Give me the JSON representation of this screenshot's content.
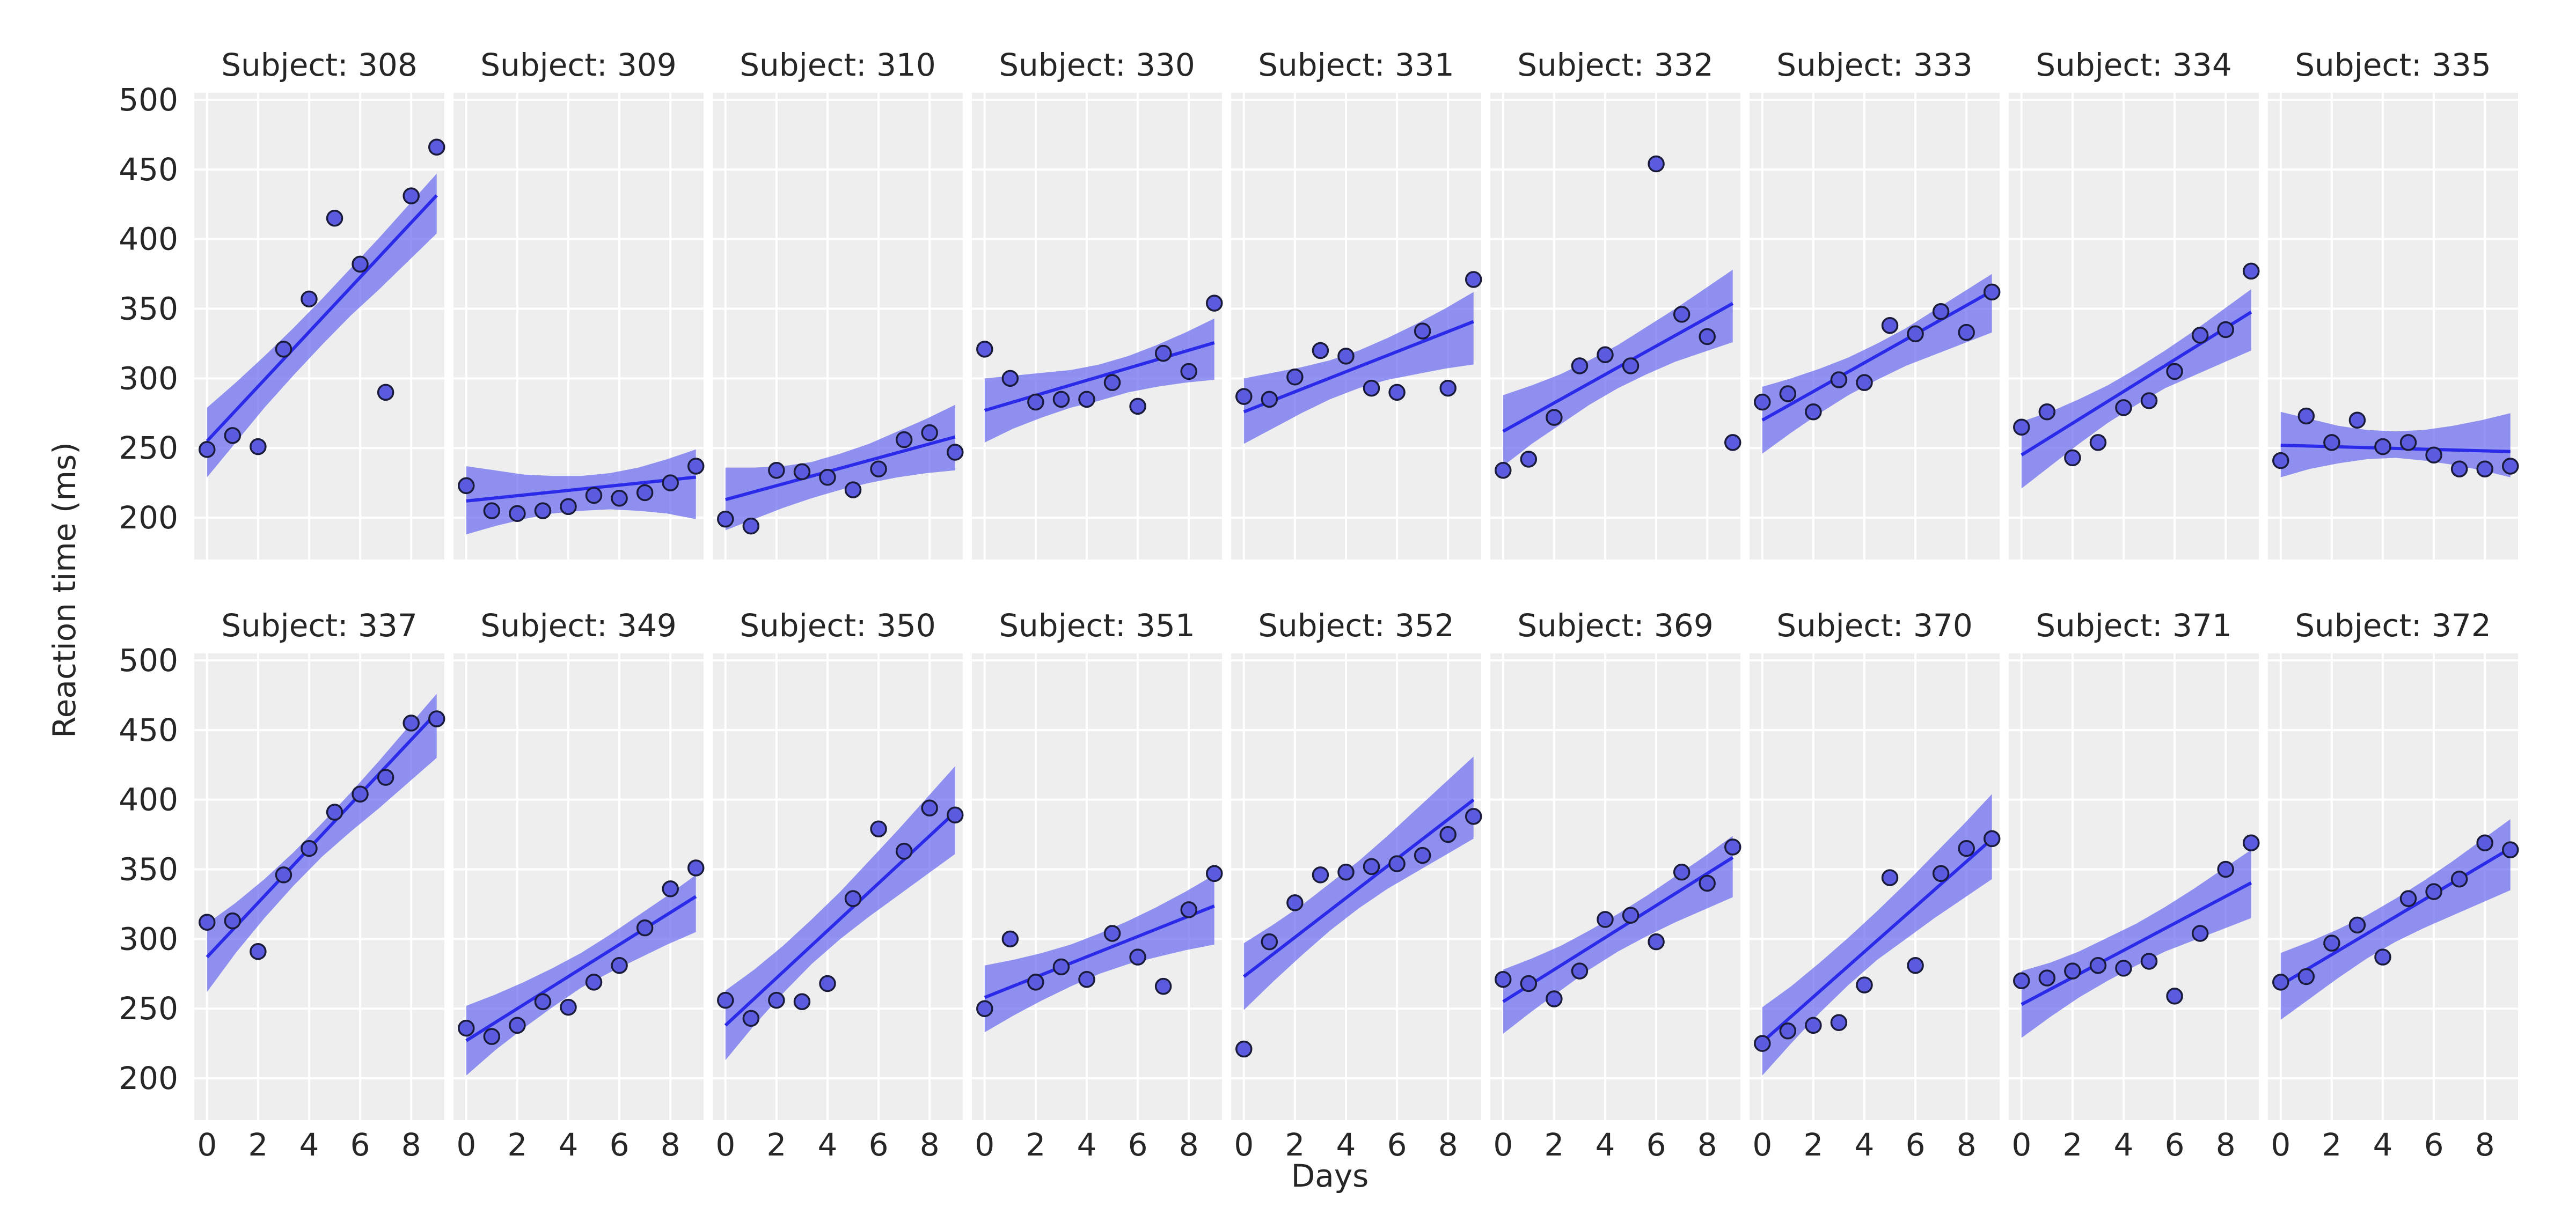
{
  "figure": {
    "xlabel": "Days",
    "ylabel": "Reaction time (ms)"
  },
  "style": {
    "panel_bg": "#EEEEEE",
    "grid": "#FFFFFF",
    "line": "#2A2AE8",
    "band": "#6B6BF0",
    "point_fill": "#5B5BE0",
    "point_edge": "#1A1A3A"
  },
  "chart_data": [
    {
      "type": "scatter",
      "title": "Subject: 308",
      "x": [
        0,
        1,
        2,
        3,
        4,
        5,
        6,
        7,
        8,
        9
      ],
      "y": [
        249,
        259,
        251,
        321,
        357,
        415,
        382,
        290,
        431,
        466
      ],
      "fit": {
        "intercept": 255,
        "slope": 19.6
      },
      "band": {
        "lower": [
          229,
          254,
          279,
          302,
          324,
          345,
          364,
          384,
          404
        ],
        "upper": [
          279,
          297,
          316,
          336,
          357,
          379,
          401,
          424,
          447
        ]
      },
      "xlim": [
        -0.5,
        9.3
      ],
      "ylim": [
        170,
        505
      ],
      "yticks": [
        200,
        250,
        300,
        350,
        400,
        450,
        500
      ],
      "xticks": [
        0,
        2,
        4,
        6,
        8
      ]
    },
    {
      "type": "scatter",
      "title": "Subject: 309",
      "x": [
        0,
        1,
        2,
        3,
        4,
        5,
        6,
        7,
        8,
        9
      ],
      "y": [
        223,
        205,
        203,
        205,
        208,
        216,
        214,
        218,
        225,
        237
      ],
      "fit": {
        "intercept": 212,
        "slope": 1.9
      },
      "band": {
        "lower": [
          188,
          194,
          199,
          203,
          205,
          206,
          205,
          203,
          199
        ],
        "upper": [
          237,
          234,
          231,
          230,
          230,
          232,
          236,
          242,
          249
        ]
      },
      "xlim": [
        -0.5,
        9.3
      ],
      "ylim": [
        170,
        505
      ],
      "yticks": [
        200,
        250,
        300,
        350,
        400,
        450,
        500
      ],
      "xticks": [
        0,
        2,
        4,
        6,
        8
      ]
    },
    {
      "type": "scatter",
      "title": "Subject: 310",
      "x": [
        0,
        1,
        2,
        3,
        4,
        5,
        6,
        7,
        8,
        9
      ],
      "y": [
        199,
        194,
        234,
        233,
        229,
        220,
        235,
        256,
        261,
        247
      ],
      "fit": {
        "intercept": 213,
        "slope": 5.0
      },
      "band": {
        "lower": [
          191,
          199,
          207,
          214,
          220,
          225,
          229,
          232,
          234
        ],
        "upper": [
          236,
          236,
          237,
          240,
          246,
          253,
          262,
          271,
          281
        ]
      },
      "xlim": [
        -0.5,
        9.3
      ],
      "ylim": [
        170,
        505
      ],
      "yticks": [
        200,
        250,
        300,
        350,
        400,
        450,
        500
      ],
      "xticks": [
        0,
        2,
        4,
        6,
        8
      ]
    },
    {
      "type": "scatter",
      "title": "Subject: 330",
      "x": [
        0,
        1,
        2,
        3,
        4,
        5,
        6,
        7,
        8,
        9
      ],
      "y": [
        321,
        300,
        283,
        285,
        285,
        297,
        280,
        318,
        305,
        354
      ],
      "fit": {
        "intercept": 277,
        "slope": 5.4
      },
      "band": {
        "lower": [
          254,
          264,
          272,
          279,
          284,
          290,
          294,
          297,
          299
        ],
        "upper": [
          300,
          302,
          304,
          306,
          310,
          316,
          324,
          333,
          343
        ]
      },
      "xlim": [
        -0.5,
        9.3
      ],
      "ylim": [
        170,
        505
      ],
      "yticks": [
        200,
        250,
        300,
        350,
        400,
        450,
        500
      ],
      "xticks": [
        0,
        2,
        4,
        6,
        8
      ]
    },
    {
      "type": "scatter",
      "title": "Subject: 331",
      "x": [
        0,
        1,
        2,
        3,
        4,
        5,
        6,
        7,
        8,
        9
      ],
      "y": [
        287,
        285,
        301,
        320,
        316,
        293,
        290,
        334,
        293,
        371
      ],
      "fit": {
        "intercept": 276,
        "slope": 7.2
      },
      "band": {
        "lower": [
          253,
          264,
          275,
          285,
          293,
          299,
          303,
          307,
          310
        ],
        "upper": [
          300,
          304,
          308,
          313,
          320,
          329,
          339,
          350,
          362
        ]
      },
      "xlim": [
        -0.5,
        9.3
      ],
      "ylim": [
        170,
        505
      ],
      "yticks": [
        200,
        250,
        300,
        350,
        400,
        450,
        500
      ],
      "xticks": [
        0,
        2,
        4,
        6,
        8
      ]
    },
    {
      "type": "scatter",
      "title": "Subject: 332",
      "x": [
        0,
        1,
        2,
        3,
        4,
        5,
        6,
        7,
        8,
        9
      ],
      "y": [
        234,
        242,
        272,
        309,
        317,
        309,
        454,
        346,
        330,
        254
      ],
      "fit": {
        "intercept": 262,
        "slope": 10.2
      },
      "band": {
        "lower": [
          237,
          253,
          267,
          281,
          293,
          303,
          312,
          319,
          326
        ],
        "upper": [
          288,
          295,
          303,
          313,
          324,
          337,
          350,
          364,
          378
        ]
      },
      "xlim": [
        -0.5,
        9.3
      ],
      "ylim": [
        170,
        505
      ],
      "yticks": [
        200,
        250,
        300,
        350,
        400,
        450,
        500
      ],
      "xticks": [
        0,
        2,
        4,
        6,
        8
      ]
    },
    {
      "type": "scatter",
      "title": "Subject: 333",
      "x": [
        0,
        1,
        2,
        3,
        4,
        5,
        6,
        7,
        8,
        9
      ],
      "y": [
        283,
        289,
        276,
        299,
        297,
        338,
        332,
        348,
        333,
        362
      ],
      "fit": {
        "intercept": 270,
        "slope": 10.3
      },
      "band": {
        "lower": [
          246,
          261,
          275,
          288,
          299,
          309,
          317,
          325,
          333
        ],
        "upper": [
          294,
          300,
          307,
          315,
          325,
          336,
          349,
          362,
          375
        ]
      },
      "xlim": [
        -0.5,
        9.3
      ],
      "ylim": [
        170,
        505
      ],
      "yticks": [
        200,
        250,
        300,
        350,
        400,
        450,
        500
      ],
      "xticks": [
        0,
        2,
        4,
        6,
        8
      ]
    },
    {
      "type": "scatter",
      "title": "Subject: 334",
      "x": [
        0,
        1,
        2,
        3,
        4,
        5,
        6,
        7,
        8,
        9
      ],
      "y": [
        265,
        276,
        243,
        254,
        279,
        284,
        305,
        331,
        335,
        377
      ],
      "fit": {
        "intercept": 245,
        "slope": 11.4
      },
      "band": {
        "lower": [
          221,
          237,
          253,
          268,
          281,
          293,
          302,
          311,
          320
        ],
        "upper": [
          269,
          276,
          285,
          295,
          307,
          320,
          334,
          349,
          364
        ]
      },
      "xlim": [
        -0.5,
        9.3
      ],
      "ylim": [
        170,
        505
      ],
      "yticks": [
        200,
        250,
        300,
        350,
        400,
        450,
        500
      ],
      "xticks": [
        0,
        2,
        4,
        6,
        8
      ]
    },
    {
      "type": "scatter",
      "title": "Subject: 335",
      "x": [
        0,
        1,
        2,
        3,
        4,
        5,
        6,
        7,
        8,
        9
      ],
      "y": [
        241,
        273,
        254,
        270,
        251,
        254,
        245,
        235,
        235,
        237
      ],
      "fit": {
        "intercept": 252,
        "slope": -0.5
      },
      "band": {
        "lower": [
          229,
          235,
          239,
          242,
          243,
          241,
          238,
          234,
          229
        ],
        "upper": [
          276,
          271,
          266,
          263,
          262,
          263,
          266,
          270,
          275
        ]
      },
      "xlim": [
        -0.5,
        9.3
      ],
      "ylim": [
        170,
        505
      ],
      "yticks": [
        200,
        250,
        300,
        350,
        400,
        450,
        500
      ],
      "xticks": [
        0,
        2,
        4,
        6,
        8
      ]
    },
    {
      "type": "scatter",
      "title": "Subject: 337",
      "x": [
        0,
        1,
        2,
        3,
        4,
        5,
        6,
        7,
        8,
        9
      ],
      "y": [
        312,
        313,
        291,
        346,
        365,
        391,
        404,
        416,
        455,
        458
      ],
      "fit": {
        "intercept": 287,
        "slope": 19.5
      },
      "band": {
        "lower": [
          262,
          290,
          315,
          338,
          359,
          377,
          394,
          412,
          430
        ],
        "upper": [
          311,
          326,
          343,
          362,
          383,
          405,
          428,
          452,
          476
        ]
      },
      "xlim": [
        -0.5,
        9.3
      ],
      "ylim": [
        170,
        505
      ],
      "yticks": [
        200,
        250,
        300,
        350,
        400,
        450,
        500
      ],
      "xticks": [
        0,
        2,
        4,
        6,
        8
      ]
    },
    {
      "type": "scatter",
      "title": "Subject: 349",
      "x": [
        0,
        1,
        2,
        3,
        4,
        5,
        6,
        7,
        8,
        9
      ],
      "y": [
        236,
        230,
        238,
        255,
        251,
        269,
        281,
        308,
        336,
        351
      ],
      "fit": {
        "intercept": 227,
        "slope": 11.5
      },
      "band": {
        "lower": [
          202,
          220,
          236,
          251,
          265,
          276,
          286,
          296,
          305
        ],
        "upper": [
          252,
          260,
          269,
          279,
          290,
          303,
          317,
          331,
          346
        ]
      },
      "xlim": [
        -0.5,
        9.3
      ],
      "ylim": [
        170,
        505
      ],
      "yticks": [
        200,
        250,
        300,
        350,
        400,
        450,
        500
      ],
      "xticks": [
        0,
        2,
        4,
        6,
        8
      ]
    },
    {
      "type": "scatter",
      "title": "Subject: 350",
      "x": [
        0,
        1,
        2,
        3,
        4,
        5,
        6,
        7,
        8,
        9
      ],
      "y": [
        256,
        243,
        256,
        255,
        268,
        329,
        379,
        363,
        394,
        389
      ],
      "fit": {
        "intercept": 238,
        "slope": 17.0
      },
      "band": {
        "lower": [
          213,
          238,
          261,
          282,
          300,
          316,
          331,
          346,
          361
        ],
        "upper": [
          263,
          278,
          295,
          314,
          334,
          356,
          378,
          401,
          424
        ]
      },
      "xlim": [
        -0.5,
        9.3
      ],
      "ylim": [
        170,
        505
      ],
      "yticks": [
        200,
        250,
        300,
        350,
        400,
        450,
        500
      ],
      "xticks": [
        0,
        2,
        4,
        6,
        8
      ]
    },
    {
      "type": "scatter",
      "title": "Subject: 351",
      "x": [
        0,
        1,
        2,
        3,
        4,
        5,
        6,
        7,
        8,
        9
      ],
      "y": [
        250,
        300,
        269,
        280,
        271,
        304,
        287,
        266,
        321,
        347
      ],
      "fit": {
        "intercept": 258,
        "slope": 7.3
      },
      "band": {
        "lower": [
          233,
          245,
          256,
          266,
          275,
          282,
          287,
          292,
          296
        ],
        "upper": [
          281,
          285,
          290,
          296,
          304,
          313,
          323,
          334,
          346
        ]
      },
      "xlim": [
        -0.5,
        9.3
      ],
      "ylim": [
        170,
        505
      ],
      "yticks": [
        200,
        250,
        300,
        350,
        400,
        450,
        500
      ],
      "xticks": [
        0,
        2,
        4,
        6,
        8
      ]
    },
    {
      "type": "scatter",
      "title": "Subject: 352",
      "x": [
        0,
        1,
        2,
        3,
        4,
        5,
        6,
        7,
        8,
        9
      ],
      "y": [
        221,
        298,
        326,
        346,
        348,
        352,
        354,
        360,
        375,
        388
      ],
      "fit": {
        "intercept": 273,
        "slope": 14.1
      },
      "band": {
        "lower": [
          249,
          269,
          288,
          306,
          322,
          336,
          348,
          360,
          372
        ],
        "upper": [
          297,
          310,
          324,
          340,
          356,
          374,
          393,
          412,
          431
        ]
      },
      "xlim": [
        -0.5,
        9.3
      ],
      "ylim": [
        170,
        505
      ],
      "yticks": [
        200,
        250,
        300,
        350,
        400,
        450,
        500
      ],
      "xticks": [
        0,
        2,
        4,
        6,
        8
      ]
    },
    {
      "type": "scatter",
      "title": "Subject: 369",
      "x": [
        0,
        1,
        2,
        3,
        4,
        5,
        6,
        7,
        8,
        9
      ],
      "y": [
        271,
        268,
        257,
        277,
        314,
        317,
        298,
        348,
        340,
        366
      ],
      "fit": {
        "intercept": 255,
        "slope": 11.5
      },
      "band": {
        "lower": [
          232,
          248,
          263,
          278,
          291,
          302,
          312,
          321,
          330
        ],
        "upper": [
          278,
          286,
          295,
          306,
          318,
          331,
          345,
          359,
          374
        ]
      },
      "xlim": [
        -0.5,
        9.3
      ],
      "ylim": [
        170,
        505
      ],
      "yticks": [
        200,
        250,
        300,
        350,
        400,
        450,
        500
      ],
      "xticks": [
        0,
        2,
        4,
        6,
        8
      ]
    },
    {
      "type": "scatter",
      "title": "Subject: 370",
      "x": [
        0,
        1,
        2,
        3,
        4,
        5,
        6,
        7,
        8,
        9
      ],
      "y": [
        225,
        234,
        238,
        240,
        267,
        344,
        281,
        347,
        365,
        372
      ],
      "fit": {
        "intercept": 226,
        "slope": 16.2
      },
      "band": {
        "lower": [
          202,
          225,
          247,
          267,
          285,
          300,
          315,
          329,
          343
        ],
        "upper": [
          251,
          266,
          283,
          301,
          320,
          340,
          361,
          382,
          404
        ]
      },
      "xlim": [
        -0.5,
        9.3
      ],
      "ylim": [
        170,
        505
      ],
      "yticks": [
        200,
        250,
        300,
        350,
        400,
        450,
        500
      ],
      "xticks": [
        0,
        2,
        4,
        6,
        8
      ]
    },
    {
      "type": "scatter",
      "title": "Subject: 371",
      "x": [
        0,
        1,
        2,
        3,
        4,
        5,
        6,
        7,
        8,
        9
      ],
      "y": [
        270,
        272,
        277,
        281,
        279,
        284,
        259,
        304,
        350,
        369
      ],
      "fit": {
        "intercept": 253,
        "slope": 9.7
      },
      "band": {
        "lower": [
          229,
          244,
          258,
          270,
          281,
          291,
          299,
          307,
          315
        ],
        "upper": [
          277,
          283,
          291,
          301,
          311,
          323,
          336,
          350,
          364
        ]
      },
      "xlim": [
        -0.5,
        9.3
      ],
      "ylim": [
        170,
        505
      ],
      "yticks": [
        200,
        250,
        300,
        350,
        400,
        450,
        500
      ],
      "xticks": [
        0,
        2,
        4,
        6,
        8
      ]
    },
    {
      "type": "scatter",
      "title": "Subject: 372",
      "x": [
        0,
        1,
        2,
        3,
        4,
        5,
        6,
        7,
        8,
        9
      ],
      "y": [
        269,
        273,
        297,
        310,
        287,
        329,
        334,
        343,
        369,
        364
      ],
      "fit": {
        "intercept": 267,
        "slope": 10.9
      },
      "band": {
        "lower": [
          242,
          257,
          272,
          286,
          298,
          308,
          317,
          326,
          335
        ],
        "upper": [
          290,
          298,
          307,
          317,
          329,
          342,
          356,
          371,
          386
        ]
      },
      "xlim": [
        -0.5,
        9.3
      ],
      "ylim": [
        170,
        505
      ],
      "yticks": [
        200,
        250,
        300,
        350,
        400,
        450,
        500
      ],
      "xticks": [
        0,
        2,
        4,
        6,
        8
      ]
    }
  ]
}
